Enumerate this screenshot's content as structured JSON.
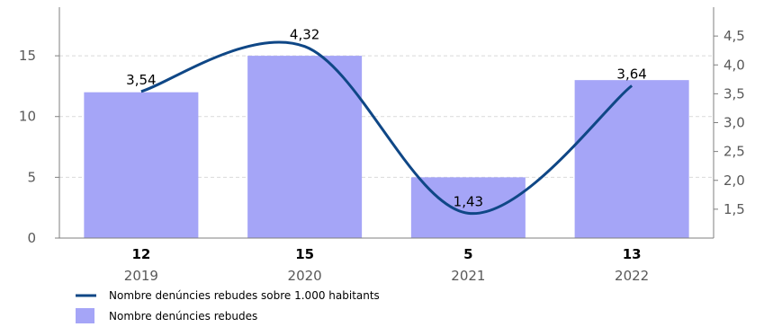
{
  "colors": {
    "bar": "#a5a5f7",
    "line": "#0f4786",
    "axis": "#7f7f7f",
    "grid": "#d9d9d9",
    "text": "#000000",
    "muted": "#595959"
  },
  "chart_data": {
    "type": "bar",
    "categories": [
      "2019",
      "2020",
      "2021",
      "2022"
    ],
    "bar_value_labels": [
      "12",
      "15",
      "5",
      "13"
    ],
    "line_value_labels": [
      "3,54",
      "4,32",
      "1,43",
      "3,64"
    ],
    "series": [
      {
        "name": "Nombre denúncies rebudes",
        "type": "bar",
        "axis": "left",
        "values": [
          12,
          15,
          5,
          13
        ]
      },
      {
        "name": "Nombre denúncies rebudes sobre 1.000 habitants",
        "type": "line",
        "axis": "right",
        "smooth": true,
        "values": [
          3.54,
          4.32,
          1.43,
          3.64
        ]
      }
    ],
    "left_axis": {
      "ylim": [
        0,
        19
      ],
      "ticks": [
        "0",
        "5",
        "10",
        "15"
      ],
      "tick_values": [
        0,
        5,
        10,
        15
      ]
    },
    "right_axis": {
      "ylim": [
        1.0,
        5.0
      ],
      "ticks": [
        "1,5",
        "2,0",
        "2,5",
        "3,0",
        "3,5",
        "4,0",
        "4,5"
      ],
      "tick_values": [
        1.5,
        2.0,
        2.5,
        3.0,
        3.5,
        4.0,
        4.5
      ]
    },
    "grid": true,
    "legend_position": "bottom-left"
  }
}
